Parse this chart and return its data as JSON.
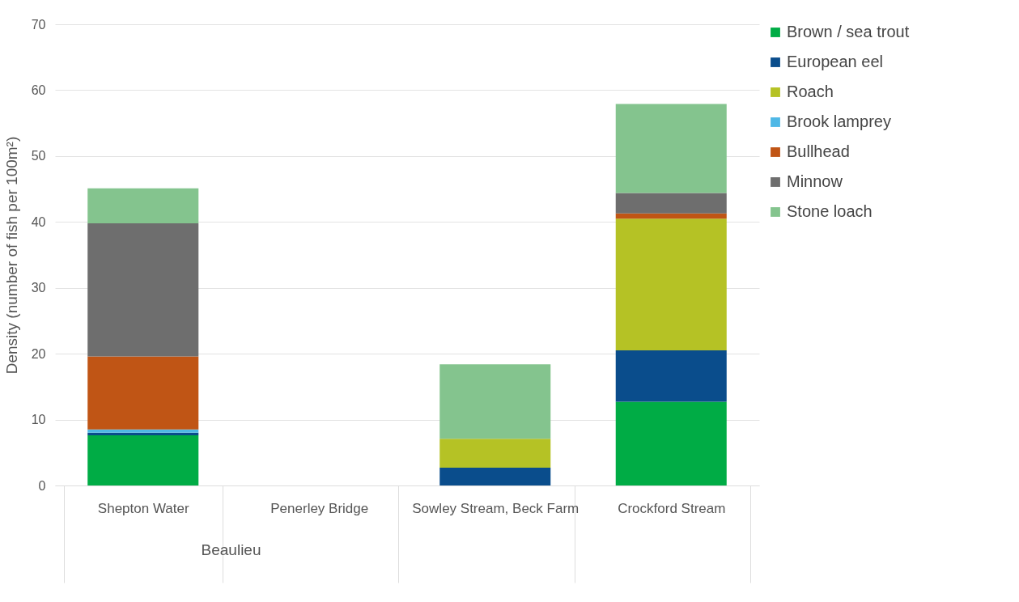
{
  "chart_data": {
    "type": "bar",
    "stacked": true,
    "categories": [
      "Shepton Water",
      "Penerley Bridge",
      "Sowley Stream, Beck Farm",
      "Crockford Stream"
    ],
    "ylabel": "Density (number of fish per 100m²)",
    "annotations": [
      "Beaulieu"
    ],
    "ylim": [
      0,
      70
    ],
    "yticks": [
      0,
      10,
      20,
      30,
      40,
      50,
      60,
      70
    ],
    "grid": "y",
    "legend": "right",
    "series": [
      {
        "name": "Brown / sea trout",
        "color": "#00ac45",
        "values": [
          7.6,
          null,
          null,
          12.7
        ]
      },
      {
        "name": "European eel",
        "color": "#0a4d8c",
        "values": [
          0.4,
          null,
          2.7,
          7.8
        ]
      },
      {
        "name": "Roach",
        "color": "#b5c225",
        "values": [
          null,
          null,
          4.4,
          20.0
        ]
      },
      {
        "name": "Brook lamprey",
        "color": "#4fb8e6",
        "values": [
          0.5,
          null,
          null,
          null
        ]
      },
      {
        "name": "Bullhead",
        "color": "#c05515",
        "values": [
          11.1,
          null,
          null,
          0.8
        ]
      },
      {
        "name": "Minnow",
        "color": "#6e6e6e",
        "values": [
          20.2,
          null,
          null,
          3.1
        ]
      },
      {
        "name": "Stone loach",
        "color": "#84c48e",
        "values": [
          5.3,
          null,
          11.3,
          13.5
        ]
      }
    ]
  }
}
